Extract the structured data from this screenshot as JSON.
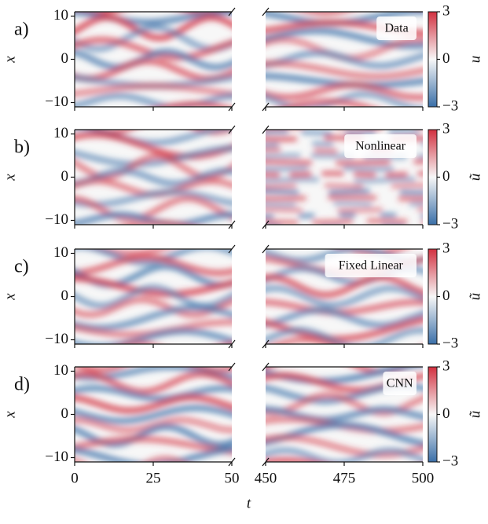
{
  "chart_data": [
    {
      "type": "heatmap",
      "panel_label": "a)",
      "annotation": "Data",
      "ylabel": "x",
      "ylim": [
        -11,
        11
      ],
      "yticks": [
        {
          "value": -10,
          "label": "−10"
        },
        0,
        10
      ],
      "xlim": [
        0,
        50
      ],
      "xticks": [
        0,
        25,
        50
      ],
      "x2lim": [
        450,
        500
      ],
      "x2ticks": [
        450,
        475,
        500
      ],
      "colorbar": {
        "label": "u",
        "lim": [
          -3,
          3
        ],
        "ticks": [
          {
            "value": -3,
            "label": "−3"
          },
          0,
          3
        ],
        "colors": [
          "#3a6fa8",
          "#f7f7f7",
          "#d2303f"
        ]
      }
    },
    {
      "type": "heatmap",
      "panel_label": "b)",
      "annotation": "Nonlinear",
      "ylabel": "x",
      "ylim": [
        -11,
        11
      ],
      "yticks": [
        {
          "value": -10,
          "label": "−10"
        },
        0,
        10
      ],
      "xlim": [
        0,
        50
      ],
      "xticks": [
        0,
        25,
        50
      ],
      "x2lim": [
        450,
        500
      ],
      "x2ticks": [
        450,
        475,
        500
      ],
      "colorbar": {
        "label": "ũ",
        "lim": [
          -3,
          3
        ],
        "ticks": [
          {
            "value": -3,
            "label": "−3"
          },
          0,
          3
        ],
        "colors": [
          "#3a6fa8",
          "#f7f7f7",
          "#d2303f"
        ]
      }
    },
    {
      "type": "heatmap",
      "panel_label": "c)",
      "annotation": "Fixed Linear",
      "ylabel": "x",
      "ylim": [
        -11,
        11
      ],
      "yticks": [
        {
          "value": -10,
          "label": "−10"
        },
        0,
        10
      ],
      "xlim": [
        0,
        50
      ],
      "xticks": [
        0,
        25,
        50
      ],
      "x2lim": [
        450,
        500
      ],
      "x2ticks": [
        450,
        475,
        500
      ],
      "colorbar": {
        "label": "ũ",
        "lim": [
          -3,
          3
        ],
        "ticks": [
          {
            "value": -3,
            "label": "−3"
          },
          0,
          3
        ],
        "colors": [
          "#3a6fa8",
          "#f7f7f7",
          "#d2303f"
        ]
      }
    },
    {
      "type": "heatmap",
      "panel_label": "d)",
      "annotation": "CNN",
      "ylabel": "x",
      "xlabel": "t",
      "ylim": [
        -11,
        11
      ],
      "yticks": [
        {
          "value": -10,
          "label": "−10"
        },
        0,
        10
      ],
      "xlim": [
        0,
        50
      ],
      "xticks": [
        0,
        25,
        50
      ],
      "x2lim": [
        450,
        500
      ],
      "x2ticks": [
        450,
        475,
        500
      ],
      "colorbar": {
        "label": "ũ",
        "lim": [
          -3,
          3
        ],
        "ticks": [
          {
            "value": -3,
            "label": "−3"
          },
          0,
          3
        ],
        "colors": [
          "#3a6fa8",
          "#f7f7f7",
          "#d2303f"
        ]
      }
    }
  ]
}
